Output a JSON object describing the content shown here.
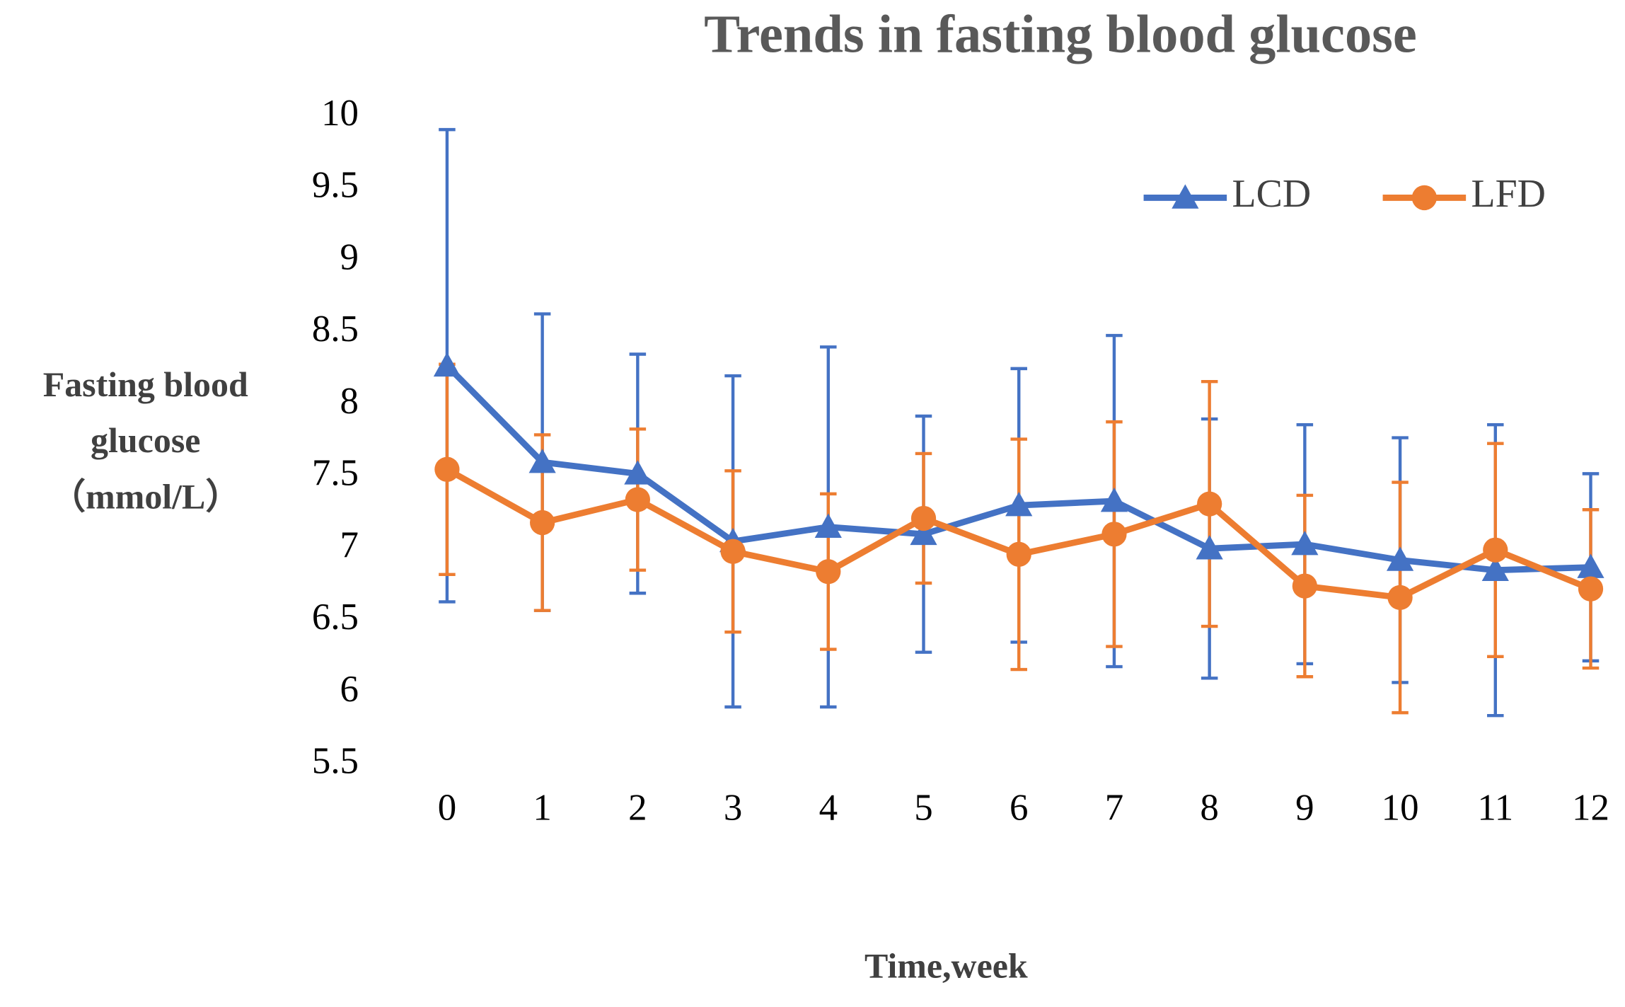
{
  "chart_data": {
    "type": "line",
    "title": "Trends in fasting blood glucose",
    "xlabel": "Time,week",
    "ylabel": [
      "Fasting blood",
      "glucose",
      "（mmol/L）"
    ],
    "categories": [
      "0",
      "1",
      "2",
      "3",
      "4",
      "5",
      "6",
      "7",
      "8",
      "9",
      "10",
      "11",
      "12"
    ],
    "series": [
      {
        "name": "LCD",
        "color": "#4472c4",
        "marker": "triangle",
        "values": [
          8.27,
          7.6,
          7.52,
          7.05,
          7.15,
          7.1,
          7.3,
          7.33,
          7.0,
          7.03,
          6.92,
          6.85,
          6.87
        ],
        "errors": [
          1.64,
          1.03,
          0.83,
          1.15,
          1.25,
          0.82,
          0.95,
          1.15,
          0.9,
          0.83,
          0.85,
          1.01,
          0.65
        ]
      },
      {
        "name": "LFD",
        "color": "#ed7d31",
        "marker": "circle",
        "values": [
          7.55,
          7.18,
          7.34,
          6.98,
          6.84,
          7.21,
          6.96,
          7.1,
          7.31,
          6.74,
          6.66,
          6.99,
          6.72
        ],
        "errors": [
          0.73,
          0.61,
          0.49,
          0.56,
          0.54,
          0.45,
          0.8,
          0.78,
          0.85,
          0.63,
          0.8,
          0.74,
          0.55
        ]
      }
    ],
    "ylim": [
      5.5,
      10
    ],
    "yticks": [
      5.5,
      6,
      6.5,
      7,
      7.5,
      8,
      8.5,
      9,
      9.5,
      10
    ],
    "grid": false,
    "legend": "upper right"
  }
}
